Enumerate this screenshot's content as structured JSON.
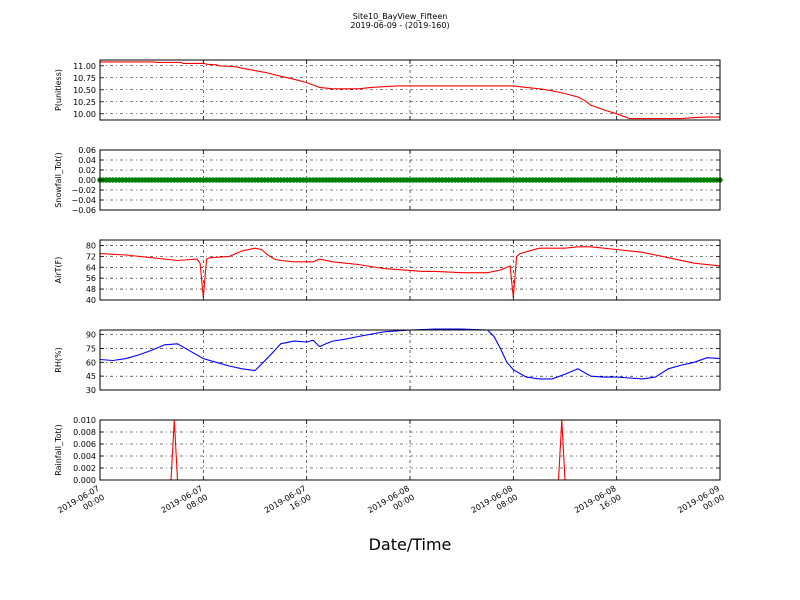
{
  "figure": {
    "title_line1": "Site10_BayView_Fifteen",
    "title_line2": "2019-06-09 - (2019-160)",
    "xlabel": "Date/Time"
  },
  "chart_data": {
    "type": "line",
    "x_unit": "hours since 2019-06-07 00:00",
    "xlim": [
      0,
      48
    ],
    "x_ticks": [
      {
        "x": 0,
        "l1": "2019-06-07",
        "l2": "00:00"
      },
      {
        "x": 8,
        "l1": "2019-06-07",
        "l2": "08:00"
      },
      {
        "x": 16,
        "l1": "2019-06-07",
        "l2": "16:00"
      },
      {
        "x": 24,
        "l1": "2019-06-08",
        "l2": "00:00"
      },
      {
        "x": 32,
        "l1": "2019-06-08",
        "l2": "08:00"
      },
      {
        "x": 40,
        "l1": "2019-06-08",
        "l2": "16:00"
      },
      {
        "x": 48,
        "l1": "2019-06-09",
        "l2": "00:00"
      }
    ],
    "grid": true,
    "panels": [
      {
        "ylabel": "P(unitless)",
        "ylim": [
          9.87,
          11.12
        ],
        "yticks": [
          10.0,
          10.25,
          10.5,
          10.75,
          11.0
        ],
        "ytick_labels": [
          "10.00",
          "10.25",
          "10.50",
          "10.75",
          "11.00"
        ],
        "color": "#ff0000",
        "style": "line",
        "x": [
          0,
          4.2,
          4.3,
          6.3,
          6.4,
          8,
          8.3,
          9,
          9.2,
          10.5,
          11,
          12,
          13,
          14,
          15,
          16,
          16.5,
          17,
          18,
          20,
          21,
          23,
          25,
          28,
          31,
          32,
          33,
          34,
          35,
          36,
          37,
          37.5,
          38,
          39,
          40,
          40.5,
          41,
          42,
          43,
          45,
          46,
          47,
          48
        ],
        "y": [
          11.08,
          11.08,
          11.07,
          11.07,
          11.05,
          11.05,
          11.03,
          11.02,
          11.0,
          10.98,
          10.95,
          10.9,
          10.85,
          10.78,
          10.72,
          10.65,
          10.6,
          10.55,
          10.52,
          10.52,
          10.55,
          10.58,
          10.58,
          10.58,
          10.58,
          10.58,
          10.55,
          10.52,
          10.48,
          10.42,
          10.35,
          10.28,
          10.18,
          10.08,
          10.0,
          9.95,
          9.9,
          9.9,
          9.9,
          9.9,
          9.92,
          9.93,
          9.93
        ]
      },
      {
        "ylabel": "Snowfall_Tot()",
        "ylim": [
          -0.06,
          0.06
        ],
        "yticks": [
          -0.06,
          -0.04,
          -0.02,
          0.0,
          0.02,
          0.04,
          0.06
        ],
        "ytick_labels": [
          "−0.06",
          "−0.04",
          "−0.02",
          "0.00",
          "0.02",
          "0.04",
          "0.06"
        ],
        "color": "#008000",
        "style": "markers",
        "x_start": 0,
        "x_end": 48,
        "x_step": 0.25,
        "constant_y": 0.0
      },
      {
        "ylabel": "AirT(F)",
        "ylim": [
          40,
          84
        ],
        "yticks": [
          40,
          48,
          56,
          64,
          72,
          80
        ],
        "ytick_labels": [
          "40",
          "48",
          "56",
          "64",
          "72",
          "80"
        ],
        "color": "#ff0000",
        "style": "line",
        "x": [
          0,
          2,
          4,
          6,
          7.5,
          7.75,
          8.0,
          8.25,
          8.5,
          10,
          11,
          12,
          12.5,
          13,
          13.5,
          14,
          15,
          16,
          16.5,
          17,
          18,
          19,
          20,
          22,
          25,
          26,
          28,
          30,
          31,
          31.75,
          32.0,
          32.25,
          32.5,
          34,
          35,
          36,
          37,
          38,
          39,
          40,
          41,
          42,
          44,
          46,
          48
        ],
        "y": [
          74,
          73,
          71,
          69,
          70,
          67,
          42,
          70,
          71,
          72,
          76,
          78,
          77,
          73,
          70,
          69,
          68,
          68,
          68,
          70,
          68,
          67,
          66,
          63,
          61,
          61,
          60,
          60,
          62,
          65,
          42,
          72,
          74,
          78,
          78,
          78,
          79,
          79,
          78,
          77,
          76,
          75,
          71,
          67,
          65
        ]
      },
      {
        "ylabel": "RH(%)",
        "ylim": [
          30,
          95
        ],
        "yticks": [
          30,
          45,
          60,
          75,
          90
        ],
        "ytick_labels": [
          "30",
          "45",
          "60",
          "75",
          "90"
        ],
        "color": "#0000ff",
        "style": "line",
        "x": [
          0,
          1,
          2,
          3,
          4,
          5,
          6,
          7,
          8,
          9,
          10,
          11,
          12,
          13,
          14,
          15,
          16,
          16.5,
          17,
          17.5,
          18,
          19,
          20,
          22,
          24,
          26,
          28,
          30,
          30.5,
          31,
          31.5,
          32,
          33,
          34,
          35,
          36,
          37,
          38,
          39,
          40,
          41,
          42,
          43,
          44,
          45,
          46,
          47,
          48
        ],
        "y": [
          63,
          62,
          64,
          68,
          73,
          79,
          80,
          72,
          64,
          60,
          56,
          53,
          51,
          65,
          80,
          83,
          82,
          84,
          77,
          80,
          83,
          85,
          88,
          93,
          95,
          96,
          96,
          95,
          88,
          75,
          60,
          52,
          44,
          42,
          42,
          47,
          53,
          45,
          44,
          44,
          43,
          42,
          44,
          53,
          57,
          60,
          65,
          64
        ]
      },
      {
        "ylabel": "Rainfall_Tot()",
        "ylim": [
          0,
          0.01
        ],
        "yticks": [
          0.0,
          0.002,
          0.004,
          0.006,
          0.008,
          0.01
        ],
        "ytick_labels": [
          "0.000",
          "0.002",
          "0.004",
          "0.006",
          "0.008",
          "0.010"
        ],
        "color": "#ff0000",
        "style": "line",
        "x": [
          0,
          5.5,
          5.75,
          6.0,
          35.5,
          35.75,
          36.0,
          48
        ],
        "y": [
          0,
          0,
          0.01,
          0,
          0,
          0.01,
          0,
          0
        ]
      }
    ]
  }
}
